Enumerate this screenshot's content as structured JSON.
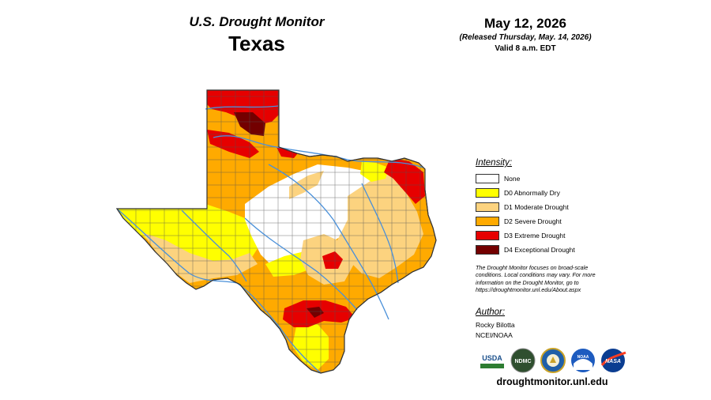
{
  "header": {
    "title": "U.S. Drought Monitor",
    "state": "Texas"
  },
  "date": {
    "main": "May 12, 2026",
    "released": "(Released Thursday, May. 14, 2026)",
    "valid": "Valid 8 a.m. EDT"
  },
  "legend": {
    "title": "Intensity:",
    "items": [
      {
        "label": "None",
        "color": "#ffffff"
      },
      {
        "label": "D0 Abnormally Dry",
        "color": "#ffff00"
      },
      {
        "label": "D1 Moderate Drought",
        "color": "#fcd37f"
      },
      {
        "label": "D2 Severe Drought",
        "color": "#ffaa00"
      },
      {
        "label": "D3 Extreme Drought",
        "color": "#e60000"
      },
      {
        "label": "D4 Exceptional Drought",
        "color": "#730000"
      }
    ]
  },
  "note": "The Drought Monitor focuses on broad-scale conditions. Local conditions may vary. For more information on the Drought Monitor, go to https://droughtmonitor.unl.edu/About.aspx",
  "author": {
    "title": "Author:",
    "name": "Rocky Bilotta",
    "org": "NCEI/NOAA"
  },
  "logos": {
    "usda": "USDA",
    "ndmc": "NDMC",
    "noaa": "NOAA",
    "nasa": "NASA"
  },
  "footer": {
    "url": "droughtmonitor.unl.edu"
  },
  "colors": {
    "none": "#ffffff",
    "d0": "#ffff00",
    "d1": "#fcd37f",
    "d2": "#ffaa00",
    "d3": "#e60000",
    "d4": "#730000",
    "river": "#4a90d9",
    "county_line": "#555555"
  }
}
